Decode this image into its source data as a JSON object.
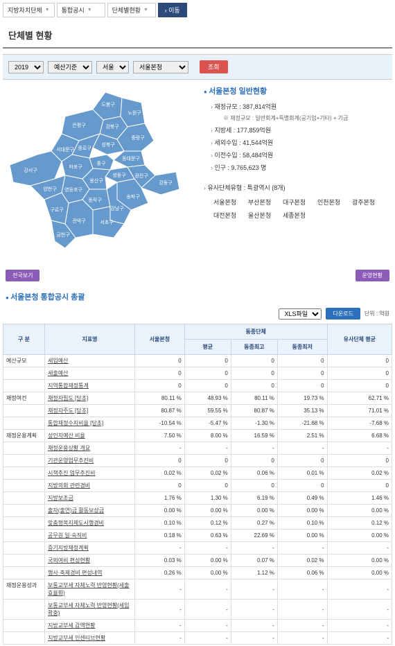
{
  "nav": {
    "items": [
      "지방자치단체",
      "통합공시",
      "단체별현황"
    ],
    "go": "› 이동"
  },
  "page_title": "단체별 현황",
  "filters": {
    "year": "2019",
    "basis": "예산기준",
    "region": "서울",
    "org": "서울본청",
    "search": "조회"
  },
  "map_districts": [
    "도봉구",
    "노원구",
    "강북구",
    "은평구",
    "성북구",
    "종로구",
    "중랑구",
    "서대문구",
    "동대문구",
    "중구",
    "성동구",
    "광진구",
    "강동구",
    "강서구",
    "마포구",
    "용산구",
    "송파구",
    "양천구",
    "영등포구",
    "동작구",
    "강남구",
    "서초구",
    "관악구",
    "구로구",
    "금천구"
  ],
  "info": {
    "title": "서울본청 일반현황",
    "items": [
      {
        "label": "재정규모",
        "value": "387,814억원"
      },
      {
        "label": "지방세",
        "value": "177,859억원"
      },
      {
        "label": "세외수입",
        "value": "41,544억원"
      },
      {
        "label": "이전수입",
        "value": "58,484억원"
      },
      {
        "label": "인구",
        "value": "9,765,623 명"
      }
    ],
    "note": "※ 재정규모 : 일반회계+특별회계(공기업+기타) + 기금"
  },
  "similar": {
    "title": "유사단체유형 : 특광역시 (8개)",
    "items": [
      "서울본청",
      "부산본청",
      "대구본청",
      "인천본청",
      "광주본청",
      "대전본청",
      "울산본청",
      "세종본청"
    ]
  },
  "buttons": {
    "national": "전국보기",
    "status": "운영현황"
  },
  "section2_title": "서울본청 통합공시 총괄",
  "table_controls": {
    "format": "XLS파일",
    "download": "다운로드",
    "unit": "단위 : 억원"
  },
  "table_headers": {
    "category": "구 분",
    "indicator": "지표명",
    "org": "서울본청",
    "same_group": "동종단체",
    "avg": "평균",
    "max": "동종최고",
    "min": "동종최저",
    "similar_avg": "유사단체\n평균"
  },
  "table_rows": [
    {
      "cat": "예산규모",
      "ind": "세입예산",
      "v": [
        "0",
        "0",
        "0",
        "0",
        "0"
      ]
    },
    {
      "cat": "",
      "ind": "세출예산",
      "v": [
        "0",
        "0",
        "0",
        "0",
        "0"
      ]
    },
    {
      "cat": "",
      "ind": "지역통합재정통계",
      "v": [
        "0",
        "0",
        "0",
        "0",
        "0"
      ]
    },
    {
      "cat": "재정여건",
      "ind": "재정자립도 [당초]",
      "v": [
        "80.11 %",
        "48.93 %",
        "80.11 %",
        "19.73 %",
        "62.71 %"
      ]
    },
    {
      "cat": "",
      "ind": "재정자주도 [당초]",
      "v": [
        "80.87 %",
        "59.55 %",
        "80.87 %",
        "35.13 %",
        "71.01 %"
      ]
    },
    {
      "cat": "",
      "ind": "통합재정수지비율 [당초]",
      "v": [
        "-10.54 %",
        "-5.47 %",
        "-1.30 %",
        "-21.68 %",
        "-7.68 %"
      ]
    },
    {
      "cat": "재정운용계획",
      "ind": "성인지예산 비율",
      "v": [
        "7.50 %",
        "8.00 %",
        "16.59 %",
        "2.51 %",
        "6.68 %"
      ]
    },
    {
      "cat": "",
      "ind": "재정운용상황 개요",
      "v": [
        "-",
        "-",
        "-",
        "-",
        "-"
      ]
    },
    {
      "cat": "",
      "ind": "기관운영업무추진비",
      "v": [
        "0",
        "0",
        "0",
        "0",
        "0"
      ]
    },
    {
      "cat": "",
      "ind": "시책추진 업무추진비",
      "v": [
        "0.02 %",
        "0.02 %",
        "0.06 %",
        "0.01 %",
        "0.02 %"
      ]
    },
    {
      "cat": "",
      "ind": "지방의회 관련경비",
      "v": [
        "0",
        "0",
        "0",
        "0",
        "0"
      ]
    },
    {
      "cat": "",
      "ind": "지방보조금",
      "v": [
        "1.76 %",
        "1.30 %",
        "6.19 %",
        "0.49 %",
        "1.46 %"
      ]
    },
    {
      "cat": "",
      "ind": "출자(출연)금 활동보상금",
      "v": [
        "0.00 %",
        "0.00 %",
        "0.00 %",
        "0.00 %",
        "0.00 %"
      ]
    },
    {
      "cat": "",
      "ind": "맞춤형복지제도시행경비",
      "v": [
        "0.10 %",
        "0.12 %",
        "0.27 %",
        "0.10 %",
        "0.12 %"
      ]
    },
    {
      "cat": "",
      "ind": "공무원 일·숙직비",
      "v": [
        "0.18 %",
        "0.63 %",
        "22.69 %",
        "0.00 %",
        "0.00 %"
      ]
    },
    {
      "cat": "",
      "ind": "증기지방재정계획",
      "v": [
        "-",
        "-",
        "-",
        "-",
        "-"
      ]
    },
    {
      "cat": "",
      "ind": "국외여비 편성현황",
      "v": [
        "0.03 %",
        "0.00 %",
        "0.07 %",
        "0.02 %",
        "0.00 %"
      ]
    },
    {
      "cat": "",
      "ind": "행사·축제경비 편성내역",
      "v": [
        "0.26 %",
        "0.00 %",
        "1.12 %",
        "0.06 %",
        "0.00 %"
      ]
    },
    {
      "cat": "재정운용성과",
      "ind": "보통교부세 자체노력 반영현황(세출효율화)",
      "v": [
        "-",
        "-",
        "-",
        "-",
        "-"
      ]
    },
    {
      "cat": "",
      "ind": "보통교부세 자체노력 반영현황(세입확충)",
      "v": [
        "-",
        "-",
        "-",
        "-",
        "-"
      ]
    },
    {
      "cat": "",
      "ind": "지방교부세 감액현황",
      "v": [
        "-",
        "-",
        "-",
        "-",
        "-"
      ]
    },
    {
      "cat": "",
      "ind": "지방교부세 인센티브현황",
      "v": [
        "-",
        "-",
        "-",
        "-",
        "-"
      ]
    }
  ]
}
